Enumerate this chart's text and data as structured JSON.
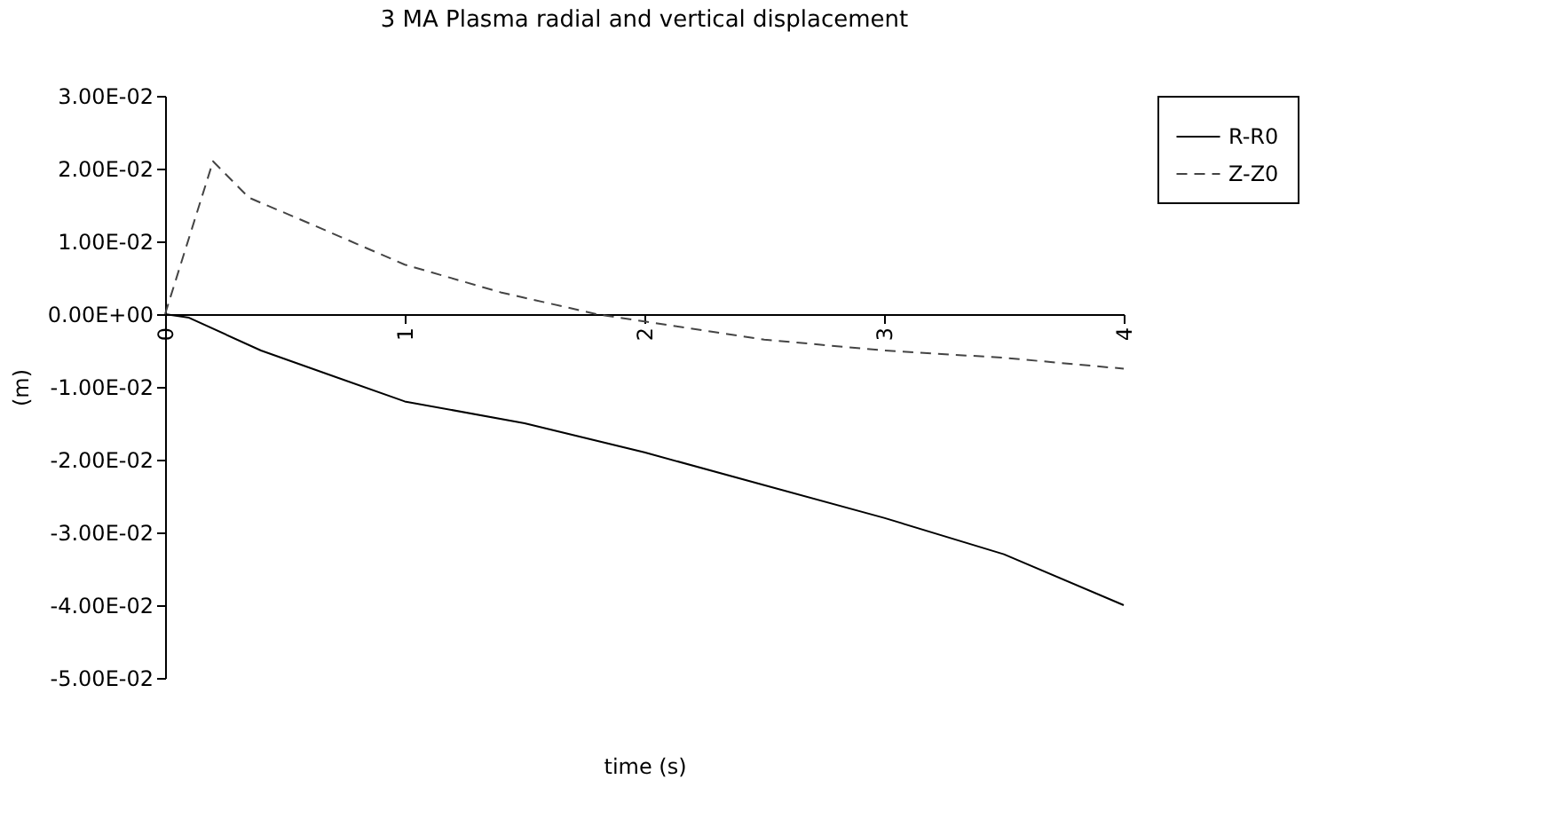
{
  "chart_data": {
    "type": "line",
    "title": "3 MA Plasma radial and vertical displacement",
    "xlabel": "time (s)",
    "ylabel": "(m)",
    "xlim": [
      0,
      4
    ],
    "xticks": [
      0,
      1,
      2,
      3,
      4
    ],
    "ylim": [
      -0.05,
      0.03
    ],
    "yticks": [
      {
        "value": 0.03,
        "label": "3.00E-02"
      },
      {
        "value": 0.02,
        "label": "2.00E-02"
      },
      {
        "value": 0.01,
        "label": "1.00E-02"
      },
      {
        "value": 0,
        "label": "0.00E+00"
      },
      {
        "value": -0.01,
        "label": "-1.00E-02"
      },
      {
        "value": -0.02,
        "label": "-2.00E-02"
      },
      {
        "value": -0.03,
        "label": "-3.00E-02"
      },
      {
        "value": -0.04,
        "label": "-4.00E-02"
      },
      {
        "value": -0.05,
        "label": "-5.00E-02"
      }
    ],
    "grid": false,
    "legend": "right",
    "marker": "none",
    "series": [
      {
        "name": "R-R0",
        "color": "#000000",
        "line_style": "solid",
        "x": [
          0,
          0.1,
          0.4,
          0.7,
          1,
          1.5,
          2,
          2.5,
          3,
          3.5,
          4
        ],
        "values": [
          0,
          -0.0005,
          -0.005,
          -0.0085,
          -0.012,
          -0.015,
          -0.019,
          -0.0235,
          -0.028,
          -0.033,
          -0.04
        ]
      },
      {
        "name": "Z-Z0",
        "color": "#444444",
        "line_style": "dashed",
        "x": [
          0,
          0.2,
          0.35,
          0.6,
          1,
          1.4,
          1.8,
          2,
          2.5,
          3,
          3.5,
          4
        ],
        "values": [
          0,
          0.021,
          0.016,
          0.0125,
          0.0068,
          0.003,
          0,
          -0.001,
          -0.0035,
          -0.005,
          -0.006,
          -0.0075
        ]
      }
    ]
  }
}
